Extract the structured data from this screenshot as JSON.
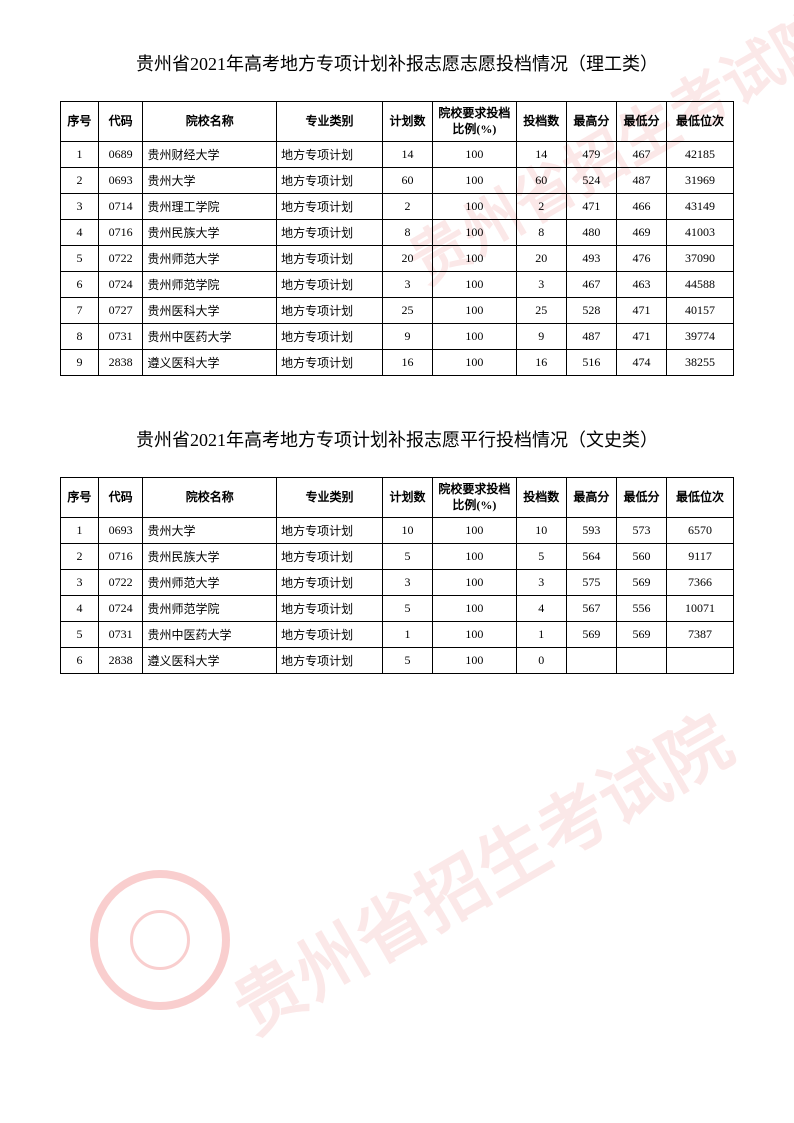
{
  "table1": {
    "title": "贵州省2021年高考地方专项计划补报志愿志愿投档情况（理工类）",
    "headers": {
      "seq": "序号",
      "code": "代码",
      "school": "院校名称",
      "major": "专业类别",
      "plan": "计划数",
      "ratio": "院校要求投档比例(%)",
      "count": "投档数",
      "high": "最高分",
      "low": "最低分",
      "rank": "最低位次"
    },
    "rows": [
      {
        "seq": "1",
        "code": "0689",
        "school": "贵州财经大学",
        "major": "地方专项计划",
        "plan": "14",
        "ratio": "100",
        "count": "14",
        "high": "479",
        "low": "467",
        "rank": "42185"
      },
      {
        "seq": "2",
        "code": "0693",
        "school": "贵州大学",
        "major": "地方专项计划",
        "plan": "60",
        "ratio": "100",
        "count": "60",
        "high": "524",
        "low": "487",
        "rank": "31969"
      },
      {
        "seq": "3",
        "code": "0714",
        "school": "贵州理工学院",
        "major": "地方专项计划",
        "plan": "2",
        "ratio": "100",
        "count": "2",
        "high": "471",
        "low": "466",
        "rank": "43149"
      },
      {
        "seq": "4",
        "code": "0716",
        "school": "贵州民族大学",
        "major": "地方专项计划",
        "plan": "8",
        "ratio": "100",
        "count": "8",
        "high": "480",
        "low": "469",
        "rank": "41003"
      },
      {
        "seq": "5",
        "code": "0722",
        "school": "贵州师范大学",
        "major": "地方专项计划",
        "plan": "20",
        "ratio": "100",
        "count": "20",
        "high": "493",
        "low": "476",
        "rank": "37090"
      },
      {
        "seq": "6",
        "code": "0724",
        "school": "贵州师范学院",
        "major": "地方专项计划",
        "plan": "3",
        "ratio": "100",
        "count": "3",
        "high": "467",
        "low": "463",
        "rank": "44588"
      },
      {
        "seq": "7",
        "code": "0727",
        "school": "贵州医科大学",
        "major": "地方专项计划",
        "plan": "25",
        "ratio": "100",
        "count": "25",
        "high": "528",
        "low": "471",
        "rank": "40157"
      },
      {
        "seq": "8",
        "code": "0731",
        "school": "贵州中医药大学",
        "major": "地方专项计划",
        "plan": "9",
        "ratio": "100",
        "count": "9",
        "high": "487",
        "low": "471",
        "rank": "39774"
      },
      {
        "seq": "9",
        "code": "2838",
        "school": "遵义医科大学",
        "major": "地方专项计划",
        "plan": "16",
        "ratio": "100",
        "count": "16",
        "high": "516",
        "low": "474",
        "rank": "38255"
      }
    ]
  },
  "table2": {
    "title": "贵州省2021年高考地方专项计划补报志愿平行投档情况（文史类）",
    "headers": {
      "seq": "序号",
      "code": "代码",
      "school": "院校名称",
      "major": "专业类别",
      "plan": "计划数",
      "ratio": "院校要求投档比例(%)",
      "count": "投档数",
      "high": "最高分",
      "low": "最低分",
      "rank": "最低位次"
    },
    "rows": [
      {
        "seq": "1",
        "code": "0693",
        "school": "贵州大学",
        "major": "地方专项计划",
        "plan": "10",
        "ratio": "100",
        "count": "10",
        "high": "593",
        "low": "573",
        "rank": "6570"
      },
      {
        "seq": "2",
        "code": "0716",
        "school": "贵州民族大学",
        "major": "地方专项计划",
        "plan": "5",
        "ratio": "100",
        "count": "5",
        "high": "564",
        "low": "560",
        "rank": "9117"
      },
      {
        "seq": "3",
        "code": "0722",
        "school": "贵州师范大学",
        "major": "地方专项计划",
        "plan": "3",
        "ratio": "100",
        "count": "3",
        "high": "575",
        "low": "569",
        "rank": "7366"
      },
      {
        "seq": "4",
        "code": "0724",
        "school": "贵州师范学院",
        "major": "地方专项计划",
        "plan": "5",
        "ratio": "100",
        "count": "4",
        "high": "567",
        "low": "556",
        "rank": "10071"
      },
      {
        "seq": "5",
        "code": "0731",
        "school": "贵州中医药大学",
        "major": "地方专项计划",
        "plan": "1",
        "ratio": "100",
        "count": "1",
        "high": "569",
        "low": "569",
        "rank": "7387"
      },
      {
        "seq": "6",
        "code": "2838",
        "school": "遵义医科大学",
        "major": "地方专项计划",
        "plan": "5",
        "ratio": "100",
        "count": "0",
        "high": "",
        "low": "",
        "rank": ""
      }
    ]
  },
  "watermark_text": "贵州省招生考试院"
}
